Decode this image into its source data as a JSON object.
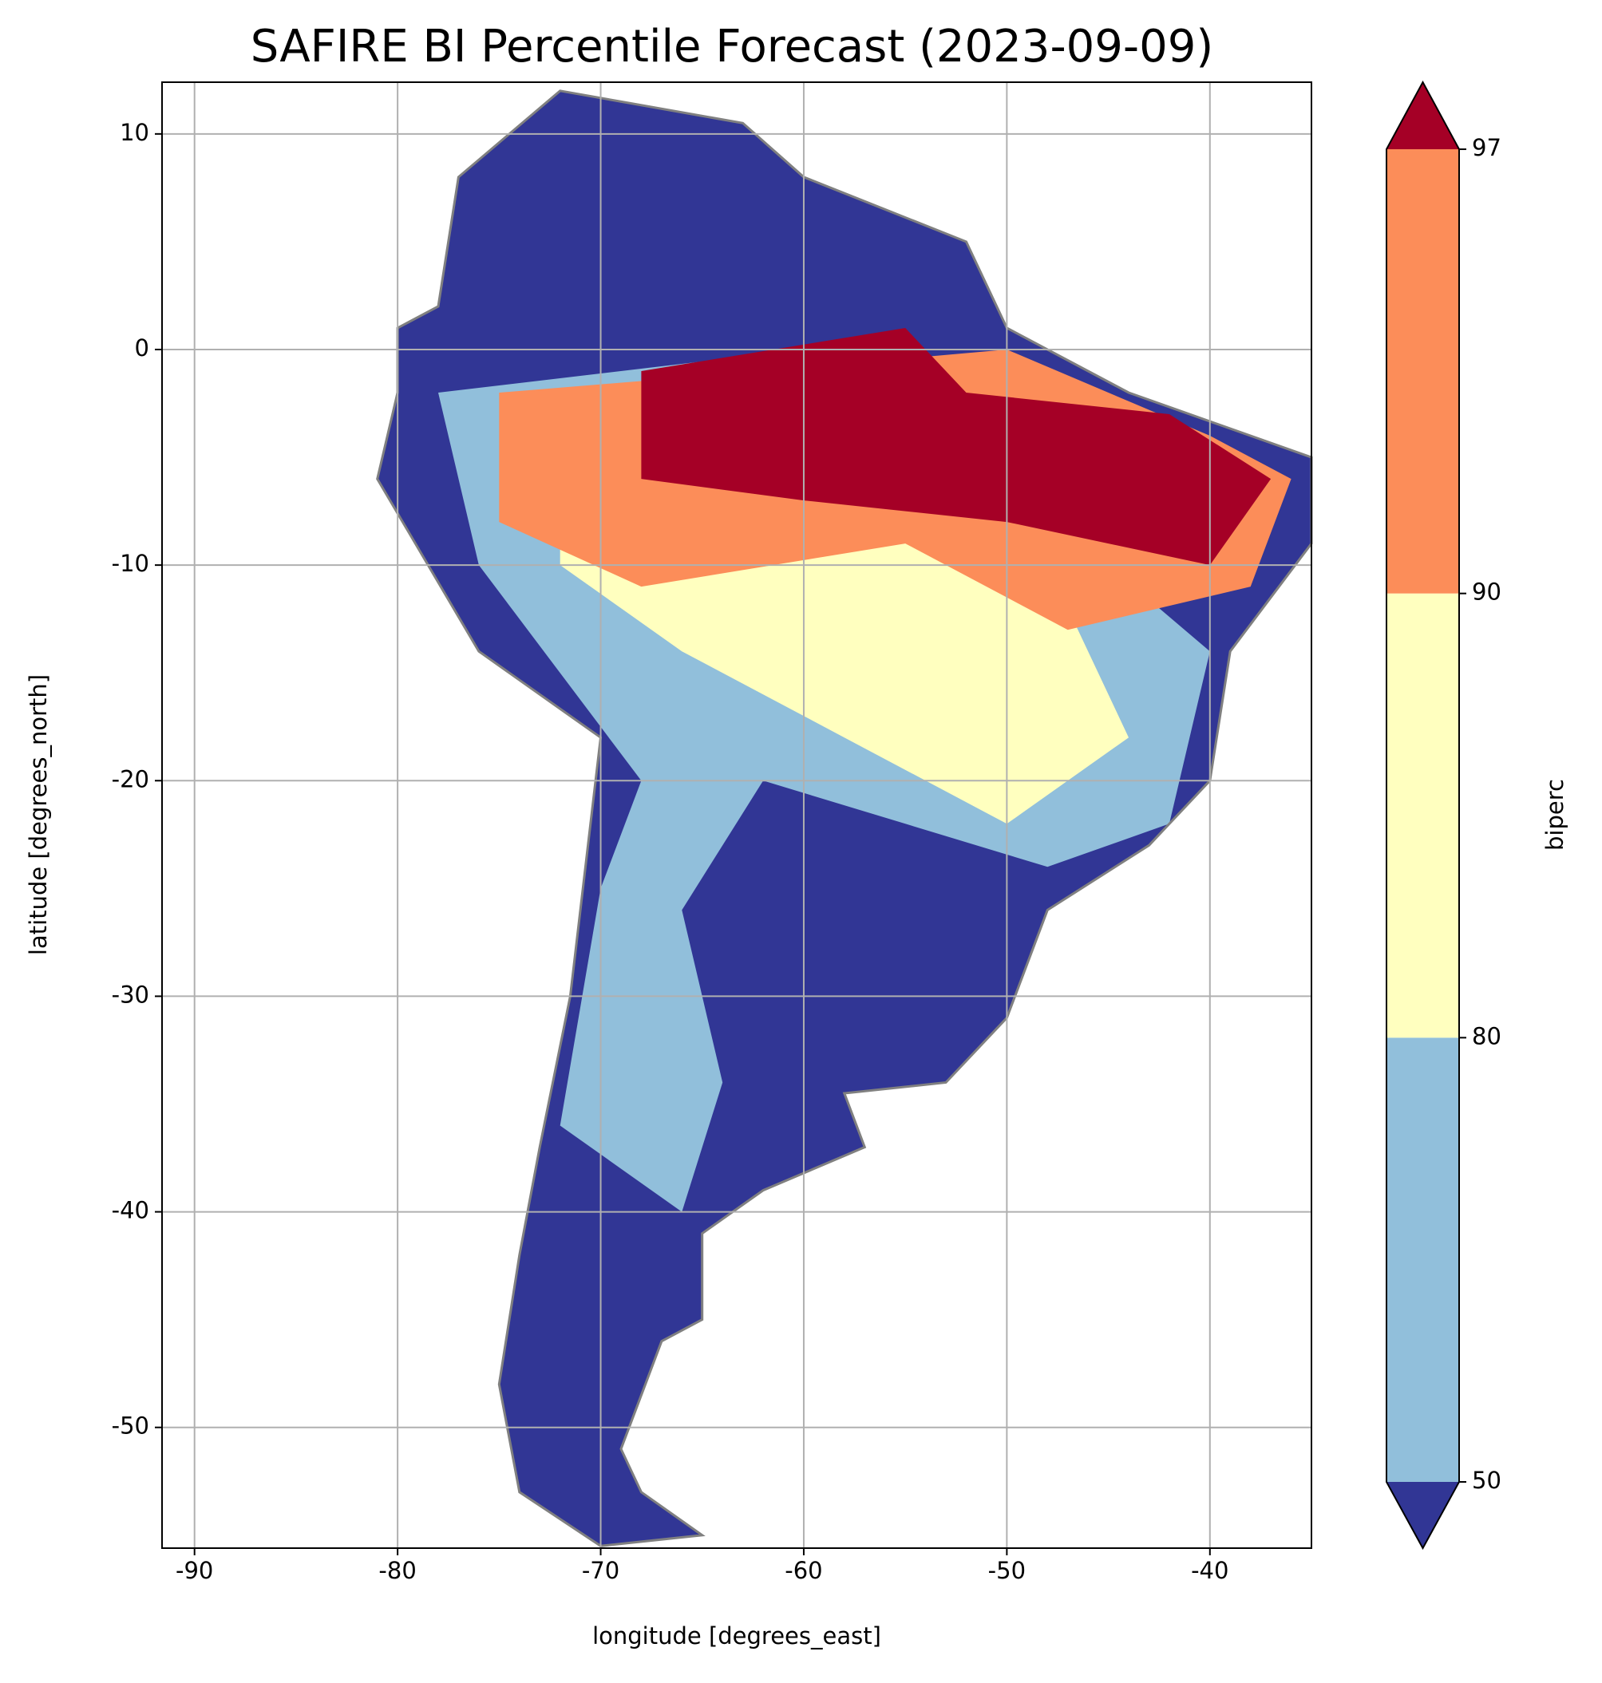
{
  "chart_data": {
    "type": "map",
    "title": "SAFIRE BI Percentile Forecast (2023-09-09)",
    "x_label": "longitude [degrees_east]",
    "y_label": "latitude [degrees_north]",
    "xlim": [
      -91.6,
      -35.0
    ],
    "ylim": [
      -55.6,
      12.4
    ],
    "xticks": [
      -90,
      -80,
      -70,
      -60,
      -50,
      -40
    ],
    "yticks": [
      10,
      0,
      -10,
      -20,
      -30,
      -40,
      -50
    ],
    "grid": true,
    "colorbar": {
      "label": "biperc",
      "levels": [
        50,
        80,
        90,
        97
      ],
      "colors": [
        "#313695",
        "#91bfdb",
        "#ffffbf",
        "#fc8d59",
        "#a50026"
      ],
      "extend": "both"
    },
    "border_color": "#808080"
  }
}
